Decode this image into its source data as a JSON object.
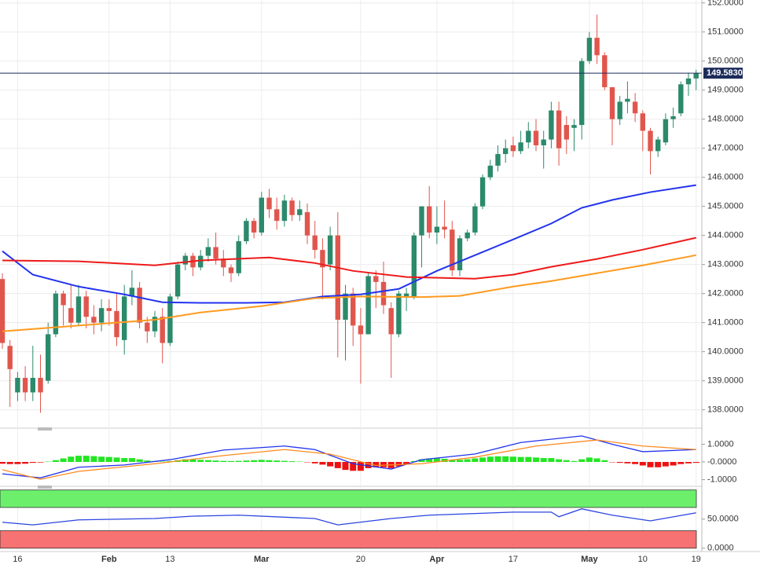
{
  "chart_data": [
    {
      "type": "candlestick",
      "categories": [
        null,
        null,
        "16",
        null,
        null,
        null,
        null,
        null,
        null,
        null,
        null,
        null,
        null,
        null,
        "Feb",
        null,
        null,
        null,
        null,
        null,
        null,
        null,
        "13",
        null,
        null,
        null,
        null,
        null,
        null,
        null,
        null,
        null,
        null,
        null,
        "Mar",
        null,
        null,
        null,
        null,
        null,
        null,
        null,
        null,
        null,
        null,
        null,
        null,
        "20",
        null,
        null,
        null,
        null,
        null,
        null,
        null,
        null,
        null,
        "Apr",
        null,
        null,
        null,
        null,
        null,
        null,
        null,
        null,
        null,
        "17",
        null,
        null,
        null,
        null,
        null,
        null,
        null,
        null,
        null,
        "May",
        null,
        null,
        null,
        null,
        null,
        null,
        "10",
        null,
        null,
        null,
        null,
        null,
        null,
        "19"
      ],
      "open": [
        142.5,
        140.2,
        138.6,
        139.1,
        138.6,
        139.1,
        139.0,
        140.6,
        142.0,
        141.5,
        141.0,
        141.9,
        141.2,
        141.0,
        141.5,
        141.4,
        140.4,
        141.9,
        142.2,
        141.0,
        140.7,
        141.2,
        140.3,
        141.9,
        143.0,
        143.3,
        142.9,
        143.3,
        143.6,
        143.2,
        142.9,
        142.7,
        143.8,
        144.5,
        144.1,
        145.3,
        144.9,
        144.5,
        145.2,
        144.7,
        144.8,
        144.0,
        143.5,
        143.0,
        144.0,
        141.1,
        142.0,
        140.9,
        140.6,
        142.6,
        142.4,
        141.5,
        140.6,
        141.9,
        141.9,
        144.0,
        145.0,
        144.1,
        144.3,
        144.2,
        142.8,
        143.9,
        144.1,
        145.0,
        146.0,
        146.4,
        146.8,
        147.1,
        146.9,
        147.2,
        147.6,
        147.1,
        147.3,
        148.3,
        147.8,
        147.7,
        147.8,
        150.0,
        150.8,
        150.2,
        149.1,
        148.0,
        148.6,
        148.6,
        148.2,
        147.6,
        146.9,
        147.2,
        148.0,
        148.2,
        149.2,
        149.4
      ],
      "high": [
        142.7,
        140.4,
        139.3,
        139.5,
        140.2,
        139.9,
        141.0,
        142.1,
        142.1,
        142.3,
        142.3,
        142.1,
        141.6,
        141.8,
        141.8,
        142.0,
        142.3,
        142.8,
        142.4,
        141.2,
        141.4,
        141.5,
        142.0,
        143.1,
        143.4,
        143.4,
        143.5,
        143.9,
        144.1,
        143.5,
        143.0,
        144.0,
        144.6,
        144.6,
        145.5,
        145.6,
        145.3,
        145.4,
        145.3,
        145.2,
        145.1,
        144.5,
        143.9,
        144.3,
        144.8,
        142.3,
        142.2,
        141.5,
        142.7,
        142.8,
        143.1,
        141.7,
        142.1,
        142.2,
        144.1,
        145.0,
        145.7,
        145.0,
        145.2,
        144.5,
        144.0,
        144.2,
        145.1,
        146.1,
        146.6,
        147.1,
        147.3,
        147.4,
        147.6,
        147.9,
        148.0,
        147.6,
        148.6,
        148.6,
        148.1,
        148.0,
        150.1,
        151.0,
        151.6,
        150.3,
        149.1,
        148.8,
        149.3,
        148.9,
        148.3,
        147.7,
        147.4,
        148.2,
        148.4,
        149.3,
        149.6,
        149.7
      ],
      "low": [
        140.1,
        138.1,
        138.3,
        138.3,
        138.3,
        137.9,
        138.9,
        140.5,
        140.9,
        140.8,
        140.9,
        140.8,
        140.6,
        140.7,
        140.9,
        140.2,
        139.9,
        141.6,
        140.8,
        140.3,
        140.5,
        139.6,
        140.2,
        141.8,
        142.8,
        142.6,
        142.8,
        143.1,
        143.0,
        142.6,
        142.4,
        142.6,
        143.7,
        143.9,
        144.0,
        144.6,
        144.2,
        144.3,
        144.5,
        144.5,
        143.7,
        143.2,
        141.8,
        142.8,
        139.8,
        139.7,
        140.2,
        138.9,
        140.6,
        141.5,
        141.3,
        139.1,
        140.5,
        141.4,
        141.8,
        142.9,
        143.9,
        143.7,
        143.9,
        142.6,
        142.6,
        143.8,
        144.0,
        144.9,
        145.9,
        146.2,
        146.5,
        146.7,
        146.8,
        147.0,
        146.9,
        146.3,
        147.0,
        146.4,
        146.8,
        146.9,
        147.3,
        149.9,
        149.9,
        149.0,
        147.1,
        147.8,
        148.2,
        147.9,
        146.9,
        146.1,
        146.7,
        147.1,
        147.7,
        148.1,
        148.8,
        149.0
      ],
      "close": [
        140.3,
        139.4,
        139.1,
        138.6,
        139.1,
        138.6,
        140.6,
        142.0,
        141.6,
        141.0,
        141.9,
        141.2,
        141.0,
        141.5,
        141.4,
        140.5,
        141.9,
        142.2,
        141.0,
        140.7,
        141.2,
        140.3,
        141.9,
        143.0,
        143.3,
        142.9,
        143.3,
        143.6,
        143.2,
        142.9,
        142.7,
        143.8,
        144.5,
        144.1,
        145.3,
        144.9,
        144.5,
        145.2,
        144.7,
        144.9,
        144.0,
        143.5,
        142.9,
        144.0,
        141.1,
        142.0,
        140.9,
        140.6,
        142.6,
        142.4,
        141.6,
        140.6,
        142.0,
        142.0,
        144.0,
        145.0,
        144.1,
        144.3,
        144.2,
        142.8,
        143.9,
        144.1,
        145.0,
        146.0,
        146.4,
        146.8,
        147.0,
        146.9,
        147.2,
        147.6,
        147.1,
        147.3,
        148.3,
        147.0,
        147.3,
        147.8,
        150.0,
        150.8,
        150.2,
        149.1,
        148.0,
        148.6,
        148.7,
        148.2,
        147.6,
        146.9,
        147.3,
        148.0,
        148.1,
        149.2,
        149.4,
        149.583
      ],
      "up_color": "#2b8a6b",
      "down_color": "#e0564d",
      "series": [
        {
          "color": "#2233ee",
          "x": [
            0,
            4,
            10,
            16,
            21,
            26,
            32,
            37,
            42,
            47,
            52,
            57,
            62,
            67,
            72,
            76,
            80,
            85,
            91
          ],
          "values": [
            143.46,
            142.65,
            142.24,
            141.97,
            141.7,
            141.68,
            141.68,
            141.7,
            141.9,
            141.97,
            142.16,
            142.78,
            143.32,
            143.86,
            144.41,
            144.95,
            145.22,
            145.49,
            145.73
          ]
        },
        {
          "color": "#ee1a1a",
          "x": [
            0,
            10,
            20,
            26,
            35,
            41,
            46,
            53,
            62,
            67,
            72,
            78,
            84,
            91
          ],
          "values": [
            143.14,
            143.11,
            142.97,
            143.14,
            143.24,
            143.05,
            142.78,
            142.57,
            142.51,
            142.65,
            142.92,
            143.19,
            143.51,
            143.92
          ]
        },
        {
          "color": "#ff9a1f",
          "x": [
            0,
            10,
            20,
            26,
            34,
            41,
            47,
            55,
            60,
            67,
            72,
            78,
            84,
            91
          ],
          "values": [
            140.7,
            140.9,
            141.1,
            141.35,
            141.57,
            141.84,
            141.9,
            141.88,
            141.92,
            142.24,
            142.43,
            142.7,
            142.97,
            143.32
          ]
        }
      ],
      "price_line": {
        "value": 149.583,
        "label": "149.5830",
        "color": "#1c2b5a"
      },
      "ylim": [
        137.45,
        152.1
      ],
      "yticks": [
        {
          "value": 138,
          "label": "138.0000"
        },
        {
          "value": 139,
          "label": "139.0000"
        },
        {
          "value": 140,
          "label": "140.0000"
        },
        {
          "value": 141,
          "label": "141.0000"
        },
        {
          "value": 142,
          "label": "142.0000"
        },
        {
          "value": 143,
          "label": "143.0000"
        },
        {
          "value": 144,
          "label": "144.0000"
        },
        {
          "value": 145,
          "label": "145.0000"
        },
        {
          "value": 146,
          "label": "146.0000"
        },
        {
          "value": 147,
          "label": "147.0000"
        },
        {
          "value": 148,
          "label": "148.0000"
        },
        {
          "value": 149,
          "label": "149.0000"
        },
        {
          "value": 150,
          "label": "150.0000"
        },
        {
          "value": 151,
          "label": "151.0000"
        },
        {
          "value": 152,
          "label": "152.0000"
        }
      ],
      "grid": true
    },
    {
      "type": "bar",
      "values": [
        -0.1,
        -0.12,
        -0.12,
        -0.1,
        -0.05,
        -0.03,
        0.02,
        0.1,
        0.2,
        0.3,
        0.35,
        0.35,
        0.33,
        0.3,
        0.28,
        0.25,
        0.22,
        0.22,
        0.15,
        0.08,
        0.05,
        0.02,
        0.05,
        0.1,
        0.15,
        0.15,
        0.12,
        0.1,
        0.08,
        0.06,
        0.05,
        0.06,
        0.08,
        0.1,
        0.12,
        0.1,
        0.08,
        0.06,
        0.04,
        0.02,
        -0.02,
        -0.08,
        -0.15,
        -0.25,
        -0.35,
        -0.45,
        -0.5,
        -0.5,
        -0.35,
        -0.3,
        -0.3,
        -0.35,
        -0.25,
        -0.15,
        0.05,
        0.15,
        0.2,
        0.2,
        0.18,
        0.12,
        0.12,
        0.15,
        0.2,
        0.25,
        0.3,
        0.32,
        0.32,
        0.3,
        0.28,
        0.28,
        0.25,
        0.22,
        0.22,
        0.15,
        0.1,
        0.05,
        0.15,
        0.25,
        0.2,
        0.1,
        -0.02,
        -0.05,
        -0.08,
        -0.12,
        -0.2,
        -0.3,
        -0.3,
        -0.25,
        -0.2,
        -0.12,
        -0.08,
        -0.05
      ],
      "up_color": "#22e622",
      "down_color": "#ee1111",
      "series": [
        {
          "color": "#2233ee",
          "x": [
            0,
            5,
            10,
            16,
            22,
            29,
            37,
            41,
            46,
            51,
            55,
            62,
            68,
            76,
            80,
            84,
            91
          ],
          "values": [
            -0.67,
            -0.9,
            -0.3,
            -0.17,
            0.13,
            0.67,
            0.9,
            0.7,
            -0.1,
            -0.4,
            0.13,
            0.45,
            1.1,
            1.47,
            1.0,
            0.58,
            0.7
          ]
        },
        {
          "color": "#ff8a1f",
          "x": [
            0,
            5,
            10,
            20,
            29,
            37,
            43,
            49,
            55,
            62,
            70,
            78,
            84,
            91
          ],
          "values": [
            -0.44,
            -0.98,
            -0.53,
            -0.1,
            0.36,
            0.7,
            0.44,
            -0.2,
            -0.1,
            0.27,
            0.9,
            1.24,
            0.9,
            0.7
          ]
        }
      ],
      "ylim": [
        -1.33,
        1.73
      ],
      "yticks": [
        {
          "value": 1,
          "label": "1.0000"
        },
        {
          "value": 0,
          "label": "-0.0000"
        },
        {
          "value": -1,
          "label": "-1.0000"
        }
      ]
    },
    {
      "type": "line",
      "bands": [
        {
          "from": 70,
          "to": 100,
          "color": "#6cf06c"
        },
        {
          "from": 0,
          "to": 30,
          "color": "#f77272"
        }
      ],
      "series": [
        {
          "color": "#2a45e0",
          "x": [
            0,
            4,
            10,
            20,
            25,
            31,
            41,
            44,
            51,
            56,
            67,
            72,
            73,
            76,
            80,
            85,
            91
          ],
          "values": [
            44.6,
            40,
            48.6,
            51,
            55,
            56.7,
            51,
            40,
            51,
            56.7,
            62,
            62,
            54,
            67.6,
            56.7,
            47,
            60.8
          ]
        }
      ],
      "ylim": [
        -3,
        105
      ],
      "yticks": [
        {
          "value": 50,
          "label": "50.0000"
        },
        {
          "value": 0,
          "label": "0.0000"
        }
      ]
    }
  ]
}
